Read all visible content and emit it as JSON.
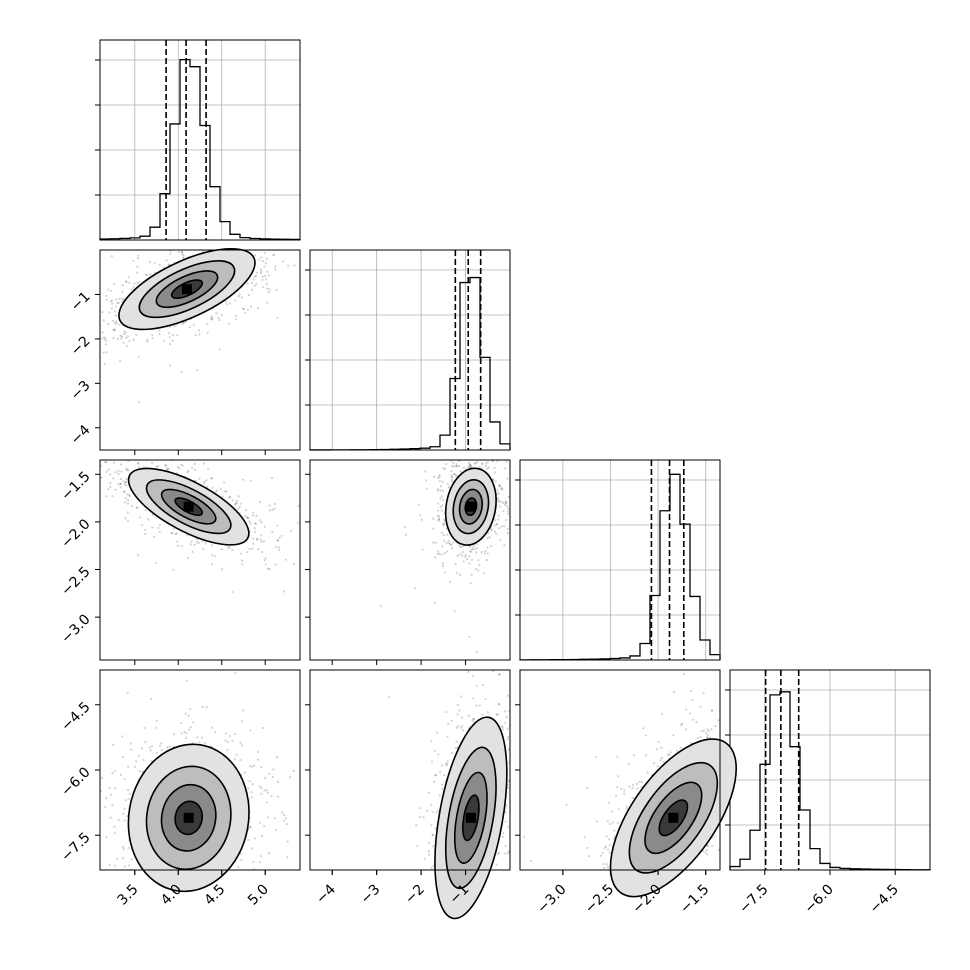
{
  "chart_data": {
    "type": "corner",
    "title": "",
    "grid": true,
    "quantiles": [
      0.16,
      0.5,
      0.84
    ],
    "parameters": [
      {
        "label": "",
        "range": [
          3.1,
          5.4
        ],
        "mode": 4.12,
        "sigma": 0.16,
        "q16": 3.86,
        "q50": 4.09,
        "q84": 4.32,
        "ticks": [
          3.5,
          4.0,
          4.5,
          5.0
        ],
        "tick_labels": [
          "3.5",
          "4.0",
          "4.5",
          "5.0"
        ]
      },
      {
        "label": "",
        "range": [
          -4.5,
          -0.0
        ],
        "mode": -0.9,
        "sigma": 0.24,
        "q16": -1.23,
        "q50": -0.94,
        "q84": -0.66,
        "ticks": [
          -4,
          -3,
          -2,
          -1
        ],
        "tick_labels": [
          "−4",
          "−3",
          "−2",
          "−1"
        ]
      },
      {
        "label": "",
        "range": [
          -3.45,
          -1.35
        ],
        "mode": -1.84,
        "sigma": 0.13,
        "q16": -2.07,
        "q50": -1.88,
        "q84": -1.73,
        "ticks": [
          -3.0,
          -2.5,
          -2.0,
          -1.5
        ],
        "tick_labels": [
          "−3.0",
          "−2.5",
          "−2.0",
          "−1.5"
        ]
      },
      {
        "label": "",
        "range": [
          -8.3,
          -3.7
        ],
        "mode": -7.15,
        "sigma": 0.32,
        "q16": -7.48,
        "q50": -7.13,
        "q84": -6.72,
        "ticks": [
          -7.5,
          -6.0,
          -4.5
        ],
        "tick_labels": [
          "−7.5",
          "−6.0",
          "−4.5"
        ]
      }
    ],
    "pairs": [
      {
        "row": 1,
        "col": 0,
        "center": [
          4.1,
          -0.88
        ],
        "tilt_deg": 25,
        "spread": [
          0.42,
          0.16
        ]
      },
      {
        "row": 2,
        "col": 0,
        "center": [
          4.12,
          -1.84
        ],
        "tilt_deg": -28,
        "spread": [
          0.38,
          0.14
        ]
      },
      {
        "row": 2,
        "col": 1,
        "center": [
          -0.88,
          -1.84
        ],
        "tilt_deg": 80,
        "spread": [
          0.22,
          0.14
        ]
      },
      {
        "row": 3,
        "col": 0,
        "center": [
          4.12,
          -7.1
        ],
        "tilt_deg": -10,
        "spread": [
          0.34,
          0.42
        ]
      },
      {
        "row": 3,
        "col": 1,
        "center": [
          -0.88,
          -7.1
        ],
        "tilt_deg": 80,
        "spread": [
          0.58,
          0.18
        ]
      },
      {
        "row": 3,
        "col": 2,
        "center": [
          -1.84,
          -7.1
        ],
        "tilt_deg": -35,
        "spread": [
          0.24,
          0.52
        ]
      }
    ]
  }
}
